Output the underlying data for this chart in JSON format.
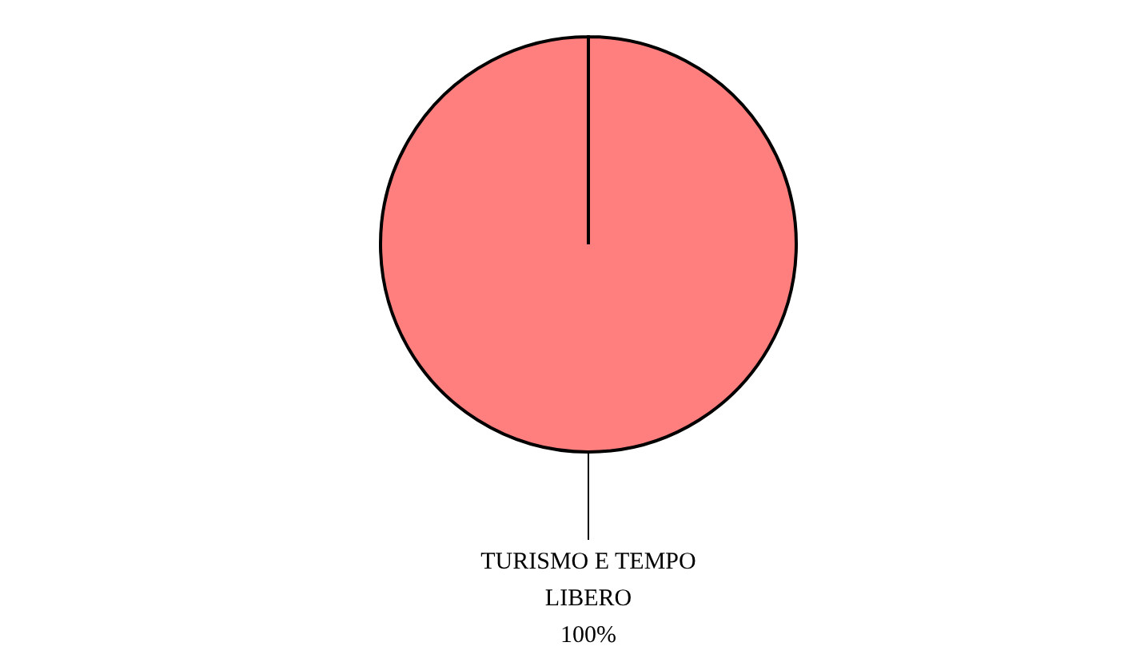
{
  "chart_data": {
    "type": "pie",
    "categories": [
      "TURISMO E TEMPO LIBERO"
    ],
    "values": [
      100
    ],
    "colors": [
      "#ff7f7f"
    ],
    "value_labels": [
      "100%"
    ]
  }
}
